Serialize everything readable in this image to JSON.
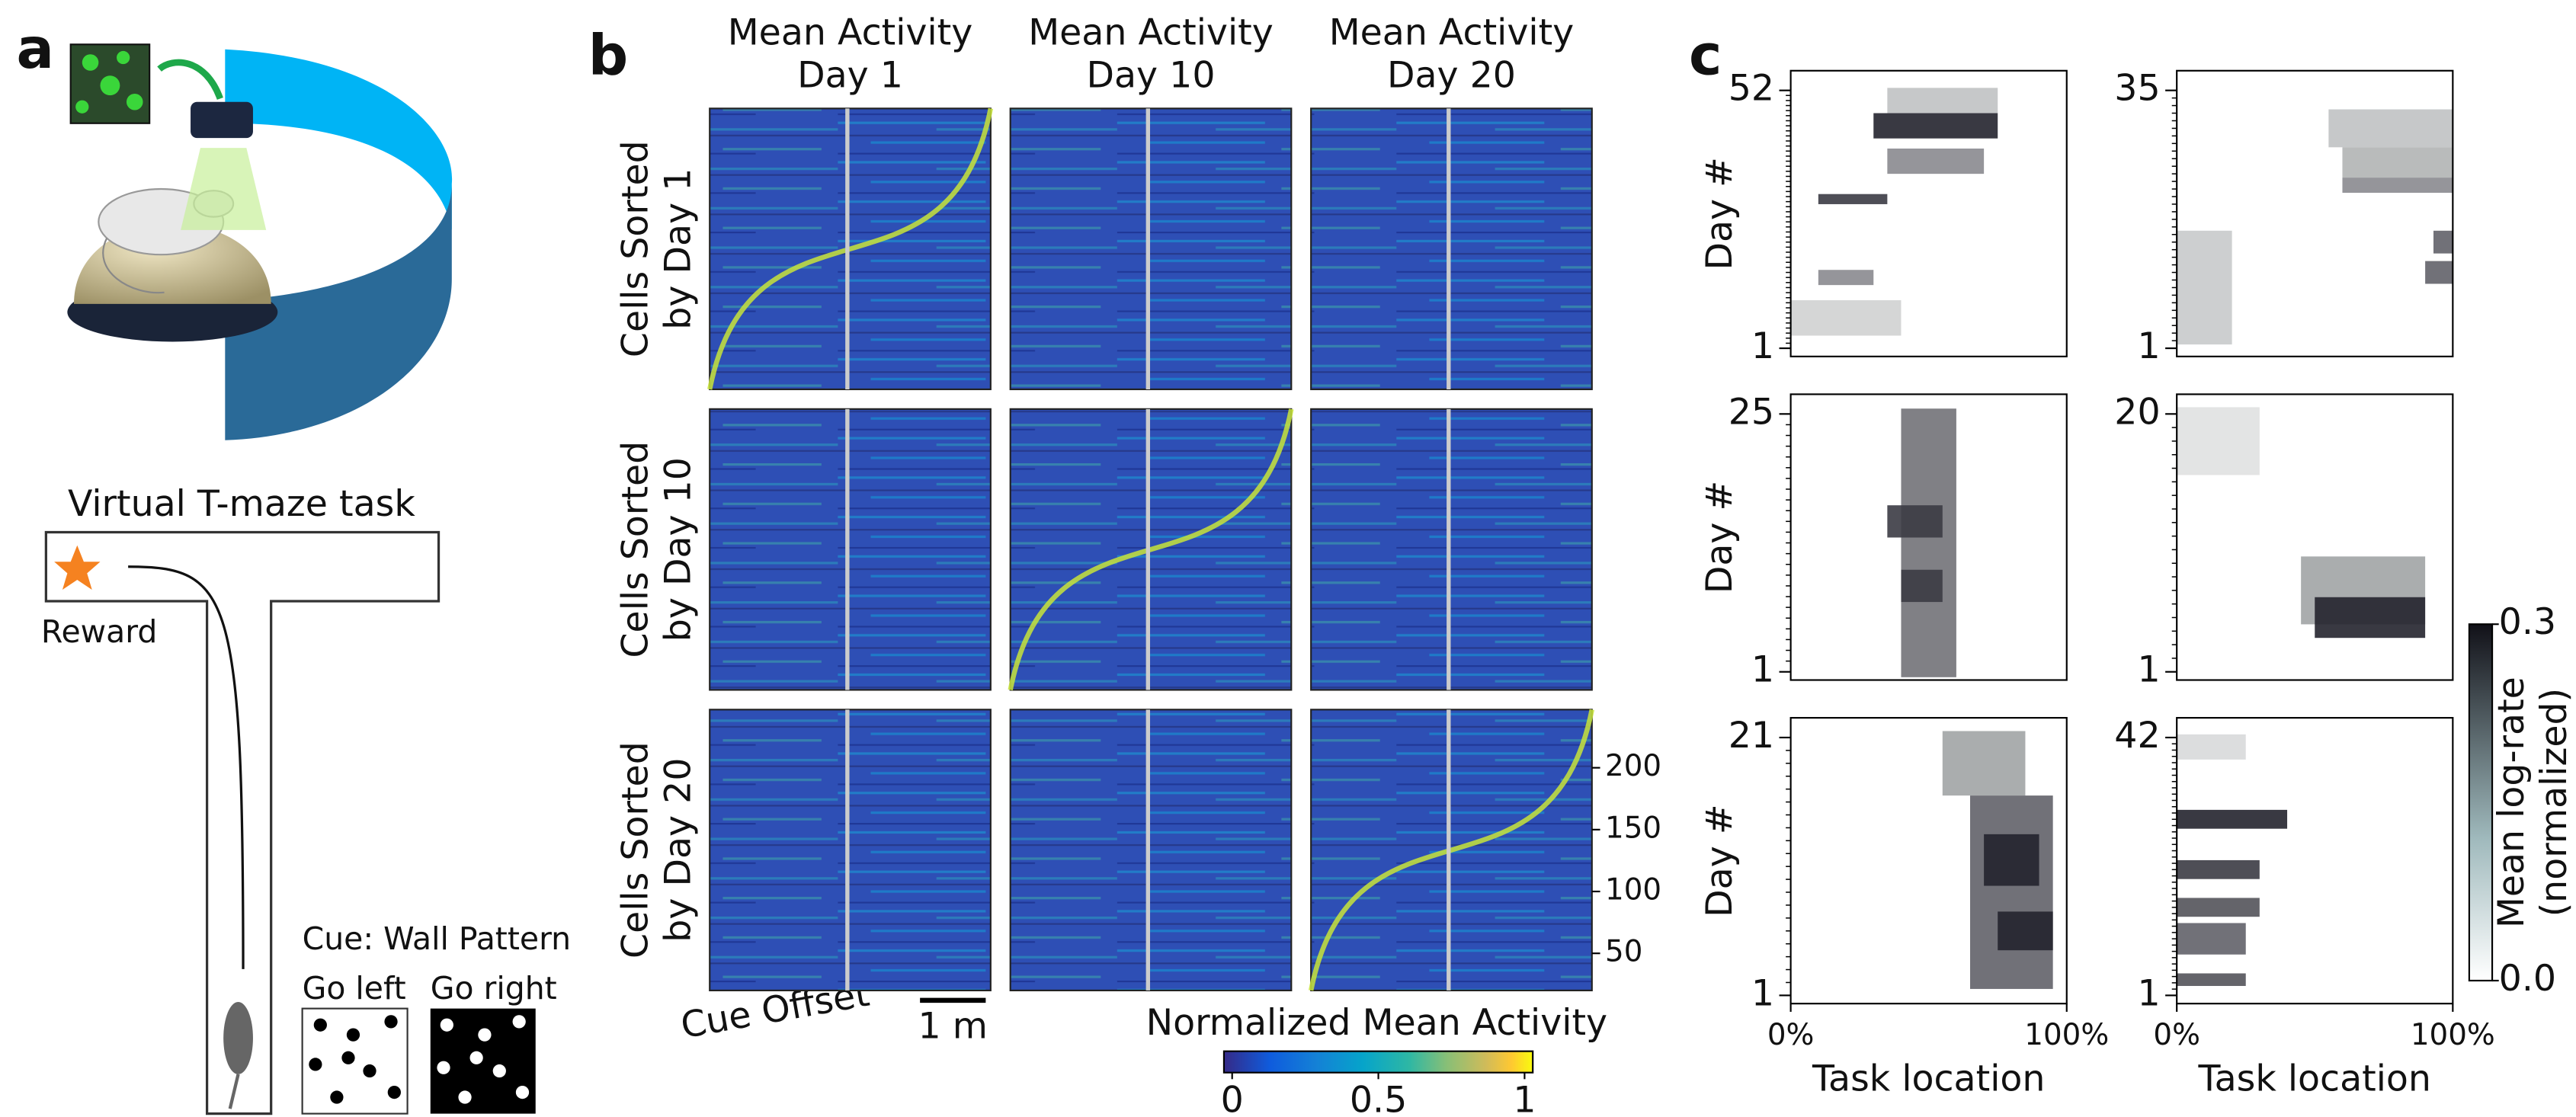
{
  "panel_a": {
    "label": "a",
    "task_title": "Virtual T-maze task",
    "reward": "Reward",
    "cue": "Cue: Wall Pattern",
    "go_left": "Go left",
    "go_right": "Go right"
  },
  "panel_b": {
    "label": "b",
    "column_titles": [
      [
        "Mean Activity",
        "Day 1"
      ],
      [
        "Mean Activity",
        "Day 10"
      ],
      [
        "Mean Activity",
        "Day 20"
      ]
    ],
    "row_titles": [
      [
        "Cells Sorted",
        "by Day 1"
      ],
      [
        "Cells Sorted",
        "by Day 10"
      ],
      [
        "Cells Sorted",
        "by Day 20"
      ]
    ],
    "cue_offset": "Cue Offset",
    "scale_bar": "1 m",
    "ylim": [
      20,
      247
    ],
    "yticks": [
      50,
      100,
      150,
      200
    ],
    "colorbar": {
      "label": "Normalized Mean Activity",
      "clim": [
        0,
        1
      ],
      "ticks": [
        0,
        0.5,
        1
      ]
    }
  },
  "panel_c": {
    "label": "c",
    "x_label": "Task location",
    "y_label": "Day #",
    "xlim": [
      0,
      100
    ],
    "xticks": [
      {
        "value": 0,
        "label": "0%"
      },
      {
        "value": 100,
        "label": "100%"
      }
    ],
    "colorbar": {
      "label": [
        "Mean log-rate",
        "(normalized)"
      ],
      "clim": [
        0,
        0.3
      ],
      "ticks": [
        {
          "value": 0,
          "label": "0.0"
        },
        0.3
      ]
    },
    "panels": [
      {
        "ylim": [
          1,
          52
        ],
        "yticks": [
          1,
          52
        ],
        "bands": [
          {
            "days": [
              48,
              52
            ],
            "x": [
              35,
              75
            ],
            "v": 0.08
          },
          {
            "days": [
              43,
              47
            ],
            "x": [
              30,
              75
            ],
            "v": 0.28
          },
          {
            "days": [
              36,
              40
            ],
            "x": [
              35,
              70
            ],
            "v": 0.15
          },
          {
            "days": [
              30,
              31
            ],
            "x": [
              10,
              35
            ],
            "v": 0.25
          },
          {
            "days": [
              14,
              16
            ],
            "x": [
              10,
              30
            ],
            "v": 0.15
          },
          {
            "days": [
              4,
              10
            ],
            "x": [
              0,
              40
            ],
            "v": 0.06
          }
        ]
      },
      {
        "ylim": [
          1,
          35
        ],
        "yticks": [
          1,
          35
        ],
        "bands": [
          {
            "days": [
              28,
              32
            ],
            "x": [
              55,
              100
            ],
            "v": 0.08
          },
          {
            "days": [
              24,
              27
            ],
            "x": [
              60,
              100
            ],
            "v": 0.1
          },
          {
            "days": [
              22,
              23
            ],
            "x": [
              60,
              100
            ],
            "v": 0.15
          },
          {
            "days": [
              2,
              16
            ],
            "x": [
              0,
              20
            ],
            "v": 0.07
          },
          {
            "days": [
              14,
              16
            ],
            "x": [
              93,
              100
            ],
            "v": 0.2
          },
          {
            "days": [
              10,
              12
            ],
            "x": [
              90,
              100
            ],
            "v": 0.2
          }
        ]
      },
      {
        "ylim": [
          1,
          25
        ],
        "yticks": [
          1,
          25
        ],
        "bands": [
          {
            "days": [
              1,
              25
            ],
            "x": [
              40,
              60
            ],
            "v": 0.18
          },
          {
            "days": [
              14,
              16
            ],
            "x": [
              35,
              55
            ],
            "v": 0.25
          },
          {
            "days": [
              8,
              10
            ],
            "x": [
              40,
              55
            ],
            "v": 0.25
          }
        ]
      },
      {
        "ylim": [
          1,
          20
        ],
        "yticks": [
          1,
          20
        ],
        "bands": [
          {
            "days": [
              16,
              20
            ],
            "x": [
              0,
              30
            ],
            "v": 0.04
          },
          {
            "days": [
              5,
              9
            ],
            "x": [
              45,
              90
            ],
            "v": 0.12
          },
          {
            "days": [
              4,
              6
            ],
            "x": [
              50,
              90
            ],
            "v": 0.28
          }
        ]
      },
      {
        "ylim": [
          1,
          21
        ],
        "yticks": [
          1,
          21
        ],
        "bands": [
          {
            "days": [
              17,
              21
            ],
            "x": [
              55,
              85
            ],
            "v": 0.12
          },
          {
            "days": [
              2,
              16
            ],
            "x": [
              65,
              95
            ],
            "v": 0.2
          },
          {
            "days": [
              10,
              13
            ],
            "x": [
              70,
              90
            ],
            "v": 0.28
          },
          {
            "days": [
              5,
              7
            ],
            "x": [
              75,
              95
            ],
            "v": 0.28
          }
        ]
      },
      {
        "ylim": [
          1,
          42
        ],
        "yticks": [
          1,
          42
        ],
        "bands": [
          {
            "days": [
              39,
              42
            ],
            "x": [
              0,
              25
            ],
            "v": 0.05
          },
          {
            "days": [
              28,
              30
            ],
            "x": [
              0,
              40
            ],
            "v": 0.28
          },
          {
            "days": [
              20,
              22
            ],
            "x": [
              0,
              30
            ],
            "v": 0.25
          },
          {
            "days": [
              14,
              16
            ],
            "x": [
              0,
              30
            ],
            "v": 0.22
          },
          {
            "days": [
              8,
              12
            ],
            "x": [
              0,
              25
            ],
            "v": 0.2
          },
          {
            "days": [
              3,
              4
            ],
            "x": [
              0,
              25
            ],
            "v": 0.22
          }
        ]
      }
    ]
  }
}
